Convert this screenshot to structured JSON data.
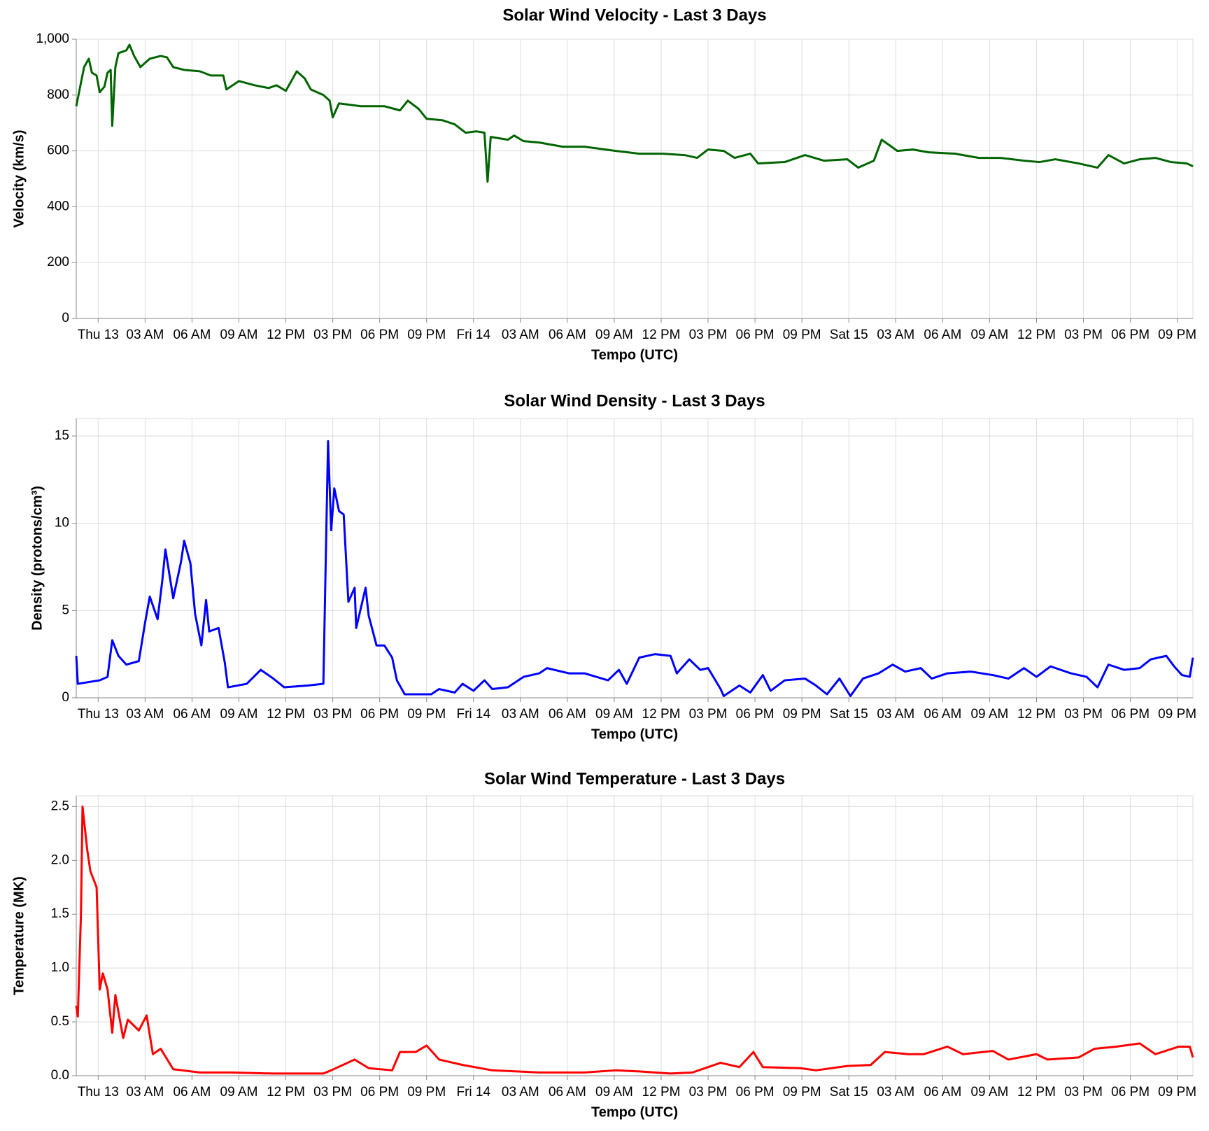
{
  "chart_data": [
    {
      "type": "line",
      "title": "Solar Wind Velocity - Last 3 Days",
      "x_label": "Tempo (UTC)",
      "y_label": "Velocity (km/s)",
      "color": "#006400",
      "grid": true,
      "xlim": [
        -1.4,
        70.0
      ],
      "ylim": [
        0,
        1000
      ],
      "xticks": [
        {
          "value": 0,
          "label": "Thu 13"
        },
        {
          "value": 3,
          "label": "03 AM"
        },
        {
          "value": 6,
          "label": "06 AM"
        },
        {
          "value": 9,
          "label": "09 AM"
        },
        {
          "value": 12,
          "label": "12 PM"
        },
        {
          "value": 15,
          "label": "03 PM"
        },
        {
          "value": 18,
          "label": "06 PM"
        },
        {
          "value": 21,
          "label": "09 PM"
        },
        {
          "value": 24,
          "label": "Fri 14"
        },
        {
          "value": 27,
          "label": "03 AM"
        },
        {
          "value": 30,
          "label": "06 AM"
        },
        {
          "value": 33,
          "label": "09 AM"
        },
        {
          "value": 36,
          "label": "12 PM"
        },
        {
          "value": 39,
          "label": "03 PM"
        },
        {
          "value": 42,
          "label": "06 PM"
        },
        {
          "value": 45,
          "label": "09 PM"
        },
        {
          "value": 48,
          "label": "Sat 15"
        },
        {
          "value": 51,
          "label": "03 AM"
        },
        {
          "value": 54,
          "label": "06 AM"
        },
        {
          "value": 57,
          "label": "09 AM"
        },
        {
          "value": 60,
          "label": "12 PM"
        },
        {
          "value": 63,
          "label": "03 PM"
        },
        {
          "value": 66,
          "label": "06 PM"
        },
        {
          "value": 69,
          "label": "09 PM"
        }
      ],
      "yticks": [
        0,
        200,
        400,
        600,
        800,
        {
          "value": 1000,
          "label": "1,000"
        }
      ],
      "x": [
        -1.4,
        -0.9,
        -0.6,
        -0.4,
        -0.1,
        0.1,
        0.4,
        0.6,
        0.8,
        0.9,
        1.1,
        1.3,
        1.8,
        2.0,
        2.3,
        2.7,
        3.3,
        4.0,
        4.4,
        4.8,
        5.5,
        6.5,
        7.2,
        8.0,
        8.2,
        9.0,
        10.0,
        10.9,
        11.4,
        12.0,
        12.7,
        13.2,
        13.6,
        14.4,
        14.8,
        15.0,
        15.4,
        16.8,
        18.3,
        19.3,
        19.8,
        20.5,
        21.0,
        22.0,
        22.8,
        23.5,
        24.2,
        24.7,
        24.9,
        25.1,
        26.2,
        26.6,
        27.2,
        28.2,
        29.7,
        31.1,
        33.1,
        34.6,
        36.1,
        37.5,
        38.3,
        39.0,
        40.0,
        40.7,
        41.7,
        42.2,
        43.9,
        45.2,
        46.4,
        47.9,
        48.6,
        49.6,
        50.1,
        51.1,
        52.1,
        53.1,
        54.8,
        56.3,
        57.7,
        59.2,
        60.2,
        61.2,
        62.7,
        63.9,
        64.6,
        65.6,
        66.6,
        67.6,
        68.6,
        69.6,
        70.0
      ],
      "values": [
        760,
        900,
        930,
        880,
        870,
        810,
        830,
        880,
        890,
        690,
        900,
        950,
        960,
        980,
        940,
        900,
        930,
        940,
        935,
        900,
        890,
        885,
        870,
        870,
        820,
        850,
        835,
        825,
        835,
        815,
        885,
        860,
        820,
        800,
        780,
        720,
        770,
        760,
        760,
        745,
        780,
        750,
        715,
        710,
        695,
        665,
        670,
        665,
        490,
        650,
        640,
        655,
        635,
        630,
        615,
        615,
        600,
        590,
        590,
        585,
        575,
        605,
        600,
        575,
        590,
        555,
        560,
        585,
        565,
        570,
        540,
        565,
        640,
        600,
        605,
        595,
        590,
        575,
        575,
        565,
        560,
        570,
        555,
        540,
        585,
        555,
        570,
        575,
        560,
        555,
        545
      ]
    },
    {
      "type": "line",
      "title": "Solar Wind Density - Last 3 Days",
      "x_label": "Tempo (UTC)",
      "y_label": "Density (protons/cm³)",
      "color": "#0000ff",
      "grid": true,
      "xlim": [
        -1.4,
        70.0
      ],
      "ylim": [
        0,
        16
      ],
      "xticks": [
        {
          "value": 0,
          "label": "Thu 13"
        },
        {
          "value": 3,
          "label": "03 AM"
        },
        {
          "value": 6,
          "label": "06 AM"
        },
        {
          "value": 9,
          "label": "09 AM"
        },
        {
          "value": 12,
          "label": "12 PM"
        },
        {
          "value": 15,
          "label": "03 PM"
        },
        {
          "value": 18,
          "label": "06 PM"
        },
        {
          "value": 21,
          "label": "09 PM"
        },
        {
          "value": 24,
          "label": "Fri 14"
        },
        {
          "value": 27,
          "label": "03 AM"
        },
        {
          "value": 30,
          "label": "06 AM"
        },
        {
          "value": 33,
          "label": "09 AM"
        },
        {
          "value": 36,
          "label": "12 PM"
        },
        {
          "value": 39,
          "label": "03 PM"
        },
        {
          "value": 42,
          "label": "06 PM"
        },
        {
          "value": 45,
          "label": "09 PM"
        },
        {
          "value": 48,
          "label": "Sat 15"
        },
        {
          "value": 51,
          "label": "03 AM"
        },
        {
          "value": 54,
          "label": "06 AM"
        },
        {
          "value": 57,
          "label": "09 AM"
        },
        {
          "value": 60,
          "label": "12 PM"
        },
        {
          "value": 63,
          "label": "03 PM"
        },
        {
          "value": 66,
          "label": "06 PM"
        },
        {
          "value": 69,
          "label": "09 PM"
        }
      ],
      "yticks": [
        0,
        5,
        10,
        15
      ],
      "x": [
        -1.4,
        -1.3,
        0.1,
        0.6,
        0.9,
        1.3,
        1.8,
        2.6,
        3.0,
        3.3,
        3.8,
        4.1,
        4.3,
        4.8,
        5.3,
        5.5,
        5.9,
        6.2,
        6.6,
        6.9,
        7.1,
        7.7,
        8.1,
        8.3,
        9.5,
        10.4,
        11.2,
        11.9,
        13.4,
        14.4,
        14.7,
        14.9,
        15.1,
        15.4,
        15.7,
        16.0,
        16.4,
        16.5,
        17.1,
        17.3,
        17.8,
        18.3,
        18.8,
        19.1,
        19.6,
        21.3,
        21.8,
        22.8,
        23.3,
        24.0,
        24.7,
        25.2,
        26.2,
        27.2,
        28.2,
        28.7,
        30.1,
        31.1,
        32.6,
        33.3,
        33.8,
        34.6,
        35.6,
        36.6,
        37.0,
        37.8,
        38.5,
        39.0,
        39.8,
        40.0,
        41.0,
        41.7,
        42.5,
        43.0,
        43.9,
        45.2,
        45.9,
        46.6,
        47.4,
        48.1,
        48.9,
        49.9,
        50.8,
        51.6,
        52.6,
        53.3,
        54.3,
        55.8,
        57.2,
        58.2,
        59.2,
        60.0,
        60.9,
        62.2,
        63.2,
        63.9,
        64.6,
        65.6,
        66.6,
        67.3,
        68.3,
        68.8,
        69.3,
        69.8,
        70.0
      ],
      "values": [
        2.4,
        0.8,
        1.0,
        1.2,
        3.3,
        2.4,
        1.9,
        2.1,
        4.3,
        5.8,
        4.5,
        6.7,
        8.5,
        5.7,
        7.8,
        9.0,
        7.7,
        4.8,
        3.0,
        5.6,
        3.8,
        4.0,
        2.0,
        0.6,
        0.8,
        1.6,
        1.1,
        0.6,
        0.7,
        0.8,
        14.7,
        9.6,
        12.0,
        10.7,
        10.5,
        5.5,
        6.3,
        4.0,
        6.3,
        4.7,
        3.0,
        3.0,
        2.3,
        1.0,
        0.2,
        0.2,
        0.5,
        0.3,
        0.8,
        0.4,
        1.0,
        0.5,
        0.6,
        1.2,
        1.4,
        1.7,
        1.4,
        1.4,
        1.0,
        1.6,
        0.8,
        2.3,
        2.5,
        2.4,
        1.4,
        2.2,
        1.6,
        1.7,
        0.5,
        0.1,
        0.7,
        0.3,
        1.3,
        0.4,
        1.0,
        1.1,
        0.7,
        0.2,
        1.1,
        0.1,
        1.1,
        1.4,
        1.9,
        1.5,
        1.7,
        1.1,
        1.4,
        1.5,
        1.3,
        1.1,
        1.7,
        1.2,
        1.8,
        1.4,
        1.2,
        0.6,
        1.9,
        1.6,
        1.7,
        2.2,
        2.4,
        1.8,
        1.3,
        1.2,
        2.3
      ]
    },
    {
      "type": "line",
      "title": "Solar Wind Temperature - Last 3 Days",
      "x_label": "Tempo (UTC)",
      "y_label": "Temperature (MK)",
      "color": "#ff0000",
      "grid": true,
      "xlim": [
        -1.4,
        70.0
      ],
      "ylim": [
        0,
        2.6
      ],
      "xticks": [
        {
          "value": 0,
          "label": "Thu 13"
        },
        {
          "value": 3,
          "label": "03 AM"
        },
        {
          "value": 6,
          "label": "06 AM"
        },
        {
          "value": 9,
          "label": "09 AM"
        },
        {
          "value": 12,
          "label": "12 PM"
        },
        {
          "value": 15,
          "label": "03 PM"
        },
        {
          "value": 18,
          "label": "06 PM"
        },
        {
          "value": 21,
          "label": "09 PM"
        },
        {
          "value": 24,
          "label": "Fri 14"
        },
        {
          "value": 27,
          "label": "03 AM"
        },
        {
          "value": 30,
          "label": "06 AM"
        },
        {
          "value": 33,
          "label": "09 AM"
        },
        {
          "value": 36,
          "label": "12 PM"
        },
        {
          "value": 39,
          "label": "03 PM"
        },
        {
          "value": 42,
          "label": "06 PM"
        },
        {
          "value": 45,
          "label": "09 PM"
        },
        {
          "value": 48,
          "label": "Sat 15"
        },
        {
          "value": 51,
          "label": "03 AM"
        },
        {
          "value": 54,
          "label": "06 AM"
        },
        {
          "value": 57,
          "label": "09 AM"
        },
        {
          "value": 60,
          "label": "12 PM"
        },
        {
          "value": 63,
          "label": "03 PM"
        },
        {
          "value": 66,
          "label": "06 PM"
        },
        {
          "value": 69,
          "label": "09 PM"
        }
      ],
      "yticks": [
        {
          "value": 0,
          "label": "0.0"
        },
        0.5,
        {
          "value": 1,
          "label": "1.0"
        },
        1.5,
        {
          "value": 2,
          "label": "2.0"
        },
        2.5
      ],
      "x": [
        -1.4,
        -1.3,
        -1.1,
        -1.0,
        -0.7,
        -0.5,
        -0.1,
        0.1,
        0.3,
        0.6,
        0.9,
        1.1,
        1.6,
        1.9,
        2.6,
        3.1,
        3.5,
        4.0,
        4.8,
        6.5,
        8.5,
        11.2,
        14.4,
        14.9,
        16.4,
        17.3,
        18.8,
        19.3,
        20.3,
        21.0,
        21.8,
        23.3,
        25.2,
        28.2,
        31.1,
        33.1,
        34.6,
        36.6,
        38.0,
        39.8,
        41.0,
        41.9,
        42.5,
        44.9,
        45.9,
        47.9,
        49.4,
        50.3,
        51.8,
        52.8,
        54.3,
        55.3,
        57.2,
        58.2,
        60.0,
        60.7,
        62.7,
        63.7,
        65.1,
        66.6,
        67.6,
        69.1,
        69.8,
        70.0
      ],
      "values": [
        0.65,
        0.55,
        1.5,
        2.5,
        2.1,
        1.9,
        1.75,
        0.8,
        0.95,
        0.8,
        0.4,
        0.75,
        0.35,
        0.52,
        0.42,
        0.56,
        0.2,
        0.25,
        0.06,
        0.03,
        0.03,
        0.02,
        0.02,
        0.05,
        0.15,
        0.07,
        0.05,
        0.22,
        0.22,
        0.28,
        0.15,
        0.1,
        0.05,
        0.03,
        0.03,
        0.05,
        0.04,
        0.02,
        0.03,
        0.12,
        0.08,
        0.22,
        0.08,
        0.07,
        0.05,
        0.09,
        0.1,
        0.22,
        0.2,
        0.2,
        0.27,
        0.2,
        0.23,
        0.15,
        0.2,
        0.15,
        0.17,
        0.25,
        0.27,
        0.3,
        0.2,
        0.27,
        0.27,
        0.17
      ]
    }
  ]
}
